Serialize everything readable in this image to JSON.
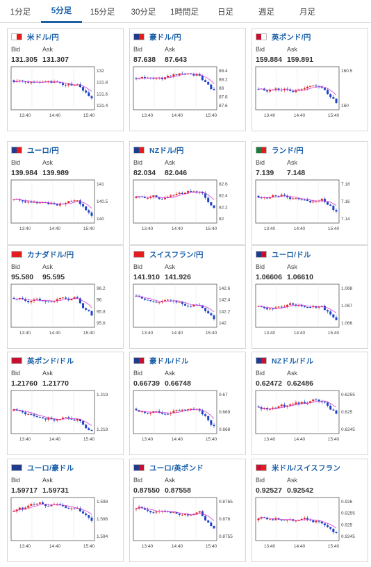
{
  "tabs": [
    {
      "label": "1分足",
      "active": false
    },
    {
      "label": "5分足",
      "active": true
    },
    {
      "label": "15分足",
      "active": false
    },
    {
      "label": "30分足",
      "active": false
    },
    {
      "label": "1時間足",
      "active": false
    },
    {
      "label": "日足",
      "active": false
    },
    {
      "label": "週足",
      "active": false
    },
    {
      "label": "月足",
      "active": false
    }
  ],
  "labels": {
    "bid": "Bid",
    "ask": "Ask"
  },
  "colors": {
    "up": "#e5221c",
    "down": "#1f43c8",
    "ma": "#d23ad8",
    "link": "#1a5fa8"
  },
  "cards": [
    {
      "pair": "米ドル/円",
      "flag": [
        "#ffffff",
        "#e61b1b"
      ],
      "bid": "131.305",
      "ask": "131.307",
      "yticks": [
        "132",
        "131.8",
        "131.6",
        "131.4"
      ],
      "xticks": [
        "13:40",
        "14:40",
        "15:40"
      ]
    },
    {
      "pair": "豪ドル/円",
      "flag": [
        "#1f3c8c",
        "#e61b1b"
      ],
      "bid": "87.638",
      "ask": "87.643",
      "yticks": [
        "88.4",
        "88.2",
        "88",
        "87.8",
        "87.6"
      ],
      "xticks": [
        "13:40",
        "14:40",
        "15:40"
      ]
    },
    {
      "pair": "英ポンド/円",
      "flag": [
        "#c8102e",
        "#ffffff"
      ],
      "bid": "159.884",
      "ask": "159.891",
      "yticks": [
        "160.5",
        "160"
      ],
      "xticks": [
        "13:40",
        "14:40",
        "15:40"
      ]
    },
    {
      "pair": "ユーロ/円",
      "flag": [
        "#1f3c8c",
        "#e61b1b"
      ],
      "bid": "139.984",
      "ask": "139.989",
      "yticks": [
        "141",
        "140.5",
        "140"
      ],
      "xticks": [
        "13:40",
        "14:40",
        "15:40"
      ]
    },
    {
      "pair": "NZドル/円",
      "flag": [
        "#1f3c8c",
        "#e61b1b"
      ],
      "bid": "82.034",
      "ask": "82.046",
      "yticks": [
        "82.6",
        "82.4",
        "82.2",
        "82"
      ],
      "xticks": [
        "13:40",
        "14:40",
        "15:40"
      ]
    },
    {
      "pair": "ランド/円",
      "flag": [
        "#1d7a3b",
        "#e61b1b"
      ],
      "bid": "7.139",
      "ask": "7.148",
      "yticks": [
        "7.18",
        "7.16",
        "7.14"
      ],
      "xticks": [
        "13:40",
        "14:40",
        "15:40"
      ]
    },
    {
      "pair": "カナダドル/円",
      "flag": [
        "#e31c23",
        "#e61b1b"
      ],
      "bid": "95.580",
      "ask": "95.595",
      "yticks": [
        "96.2",
        "96",
        "95.8",
        "95.6"
      ],
      "xticks": [
        "13:40",
        "14:40",
        "15:40"
      ]
    },
    {
      "pair": "スイスフラン/円",
      "flag": [
        "#e31c23",
        "#e61b1b"
      ],
      "bid": "141.910",
      "ask": "141.926",
      "yticks": [
        "142.6",
        "142.4",
        "142.2",
        "142"
      ],
      "xticks": [
        "13:40",
        "14:40",
        "15:40"
      ]
    },
    {
      "pair": "ユーロ/ドル",
      "flag": [
        "#1f3c8c",
        "#c8102e"
      ],
      "bid": "1.06606",
      "ask": "1.06610",
      "yticks": [
        "1.068",
        "1.067",
        "1.066"
      ],
      "xticks": [
        "13:40",
        "14:40",
        "15:40"
      ]
    },
    {
      "pair": "英ポンド/ドル",
      "flag": [
        "#c8102e",
        "#c8102e"
      ],
      "bid": "1.21760",
      "ask": "1.21770",
      "yticks": [
        "1.219",
        "1.218"
      ],
      "xticks": [
        "13:40",
        "14:40",
        "15:40"
      ]
    },
    {
      "pair": "豪ドル/ドル",
      "flag": [
        "#1f3c8c",
        "#c8102e"
      ],
      "bid": "0.66739",
      "ask": "0.66748",
      "yticks": [
        "0.67",
        "0.669",
        "0.668"
      ],
      "xticks": [
        "13:40",
        "14:40",
        "15:40"
      ]
    },
    {
      "pair": "NZドル/ドル",
      "flag": [
        "#1f3c8c",
        "#c8102e"
      ],
      "bid": "0.62472",
      "ask": "0.62486",
      "yticks": [
        "0.6255",
        "0.625",
        "0.6245"
      ],
      "xticks": [
        "13:40",
        "14:40",
        "15:40"
      ]
    },
    {
      "pair": "ユーロ/豪ドル",
      "flag": [
        "#1f3c8c",
        "#1f3c8c"
      ],
      "bid": "1.59717",
      "ask": "1.59731",
      "yticks": [
        "1.598",
        "1.596",
        "1.594"
      ],
      "xticks": [
        "13:40",
        "14:40",
        "15:40"
      ]
    },
    {
      "pair": "ユーロ/英ポンド",
      "flag": [
        "#1f3c8c",
        "#c8102e"
      ],
      "bid": "0.87550",
      "ask": "0.87558",
      "yticks": [
        "0.8765",
        "0.876",
        "0.8755"
      ],
      "xticks": [
        "13:40",
        "14:40",
        "15:40"
      ]
    },
    {
      "pair": "米ドル/スイスフラン",
      "flag": [
        "#c8102e",
        "#e31c23"
      ],
      "bid": "0.92527",
      "ask": "0.92542",
      "yticks": [
        "0.926",
        "0.9255",
        "0.925",
        "0.9245"
      ],
      "xticks": [
        "13:40",
        "14:40",
        "15:40"
      ]
    }
  ]
}
